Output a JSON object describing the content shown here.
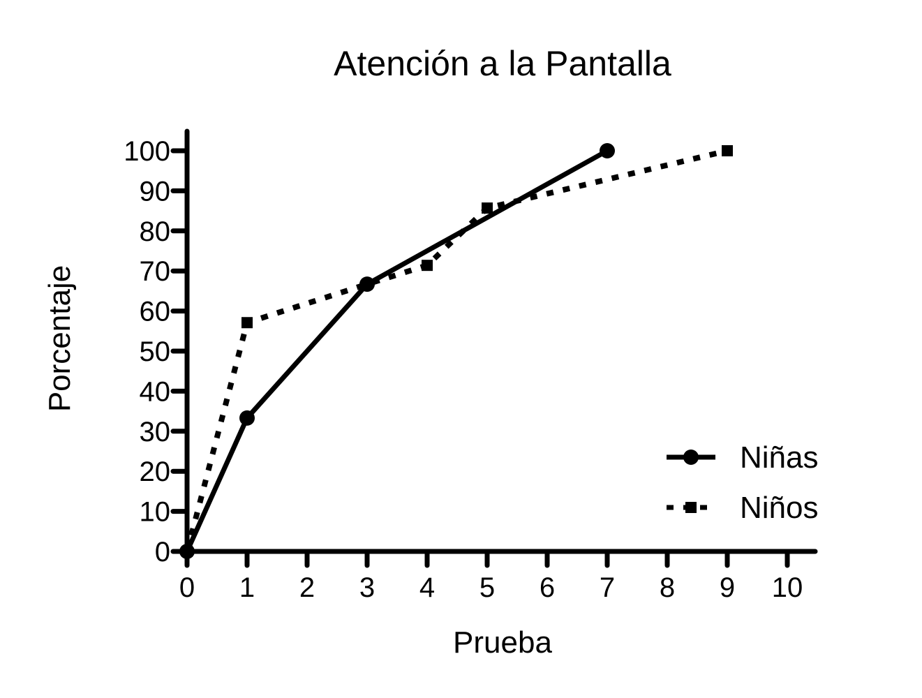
{
  "chart_data": {
    "type": "line",
    "title": "Atención a la Pantalla",
    "xlabel": "Prueba",
    "ylabel": "Porcentaje",
    "xlim": [
      0,
      10
    ],
    "ylim": [
      0,
      100
    ],
    "xticks": [
      0,
      1,
      2,
      3,
      4,
      5,
      6,
      7,
      8,
      9,
      10
    ],
    "yticks": [
      0,
      10,
      20,
      30,
      40,
      50,
      60,
      70,
      80,
      90,
      100
    ],
    "grid": false,
    "legend_position": "bottom-right",
    "series": [
      {
        "name": "Niñas",
        "style": "solid",
        "marker": "circle",
        "color": "#000000",
        "x": [
          0,
          1,
          3,
          7
        ],
        "y": [
          0,
          33.3,
          66.7,
          100
        ]
      },
      {
        "name": "Niños",
        "style": "dotted",
        "marker": "square",
        "color": "#000000",
        "x": [
          0,
          1,
          3,
          4,
          5,
          9
        ],
        "y": [
          0,
          57.1,
          66.7,
          71.4,
          85.7,
          100
        ]
      }
    ]
  }
}
